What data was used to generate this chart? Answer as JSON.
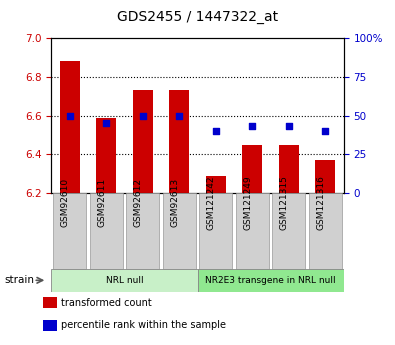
{
  "title": "GDS2455 / 1447322_at",
  "samples": [
    "GSM92610",
    "GSM92611",
    "GSM92612",
    "GSM92613",
    "GSM121242",
    "GSM121249",
    "GSM121315",
    "GSM121316"
  ],
  "transformed_counts": [
    6.88,
    6.59,
    6.73,
    6.73,
    6.29,
    6.45,
    6.45,
    6.37
  ],
  "percentile_ranks": [
    50,
    45,
    50,
    50,
    40,
    43,
    43,
    40
  ],
  "groups": [
    {
      "label": "NRL null",
      "start": 0,
      "end": 3,
      "color": "#c8f0c8"
    },
    {
      "label": "NR2E3 transgene in NRL null",
      "start": 4,
      "end": 7,
      "color": "#90e890"
    }
  ],
  "left_ylim": [
    6.2,
    7.0
  ],
  "left_yticks": [
    6.2,
    6.4,
    6.6,
    6.8,
    7.0
  ],
  "right_ylim": [
    0,
    100
  ],
  "right_yticks": [
    0,
    25,
    50,
    75,
    100
  ],
  "right_yticklabels": [
    "0",
    "25",
    "50",
    "75",
    "100%"
  ],
  "bar_color": "#cc0000",
  "dot_color": "#0000cc",
  "bar_bottom": 6.2,
  "legend_items": [
    {
      "label": "transformed count",
      "color": "#cc0000"
    },
    {
      "label": "percentile rank within the sample",
      "color": "#0000cc"
    }
  ],
  "strain_label": "strain",
  "left_tick_color": "#cc0000",
  "right_tick_color": "#0000cc",
  "grid_yticks": [
    6.4,
    6.6,
    6.8
  ],
  "xtick_bg_color": "#d0d0d0",
  "xtick_edge_color": "#999999",
  "fig_width": 3.95,
  "fig_height": 3.45,
  "dpi": 100
}
